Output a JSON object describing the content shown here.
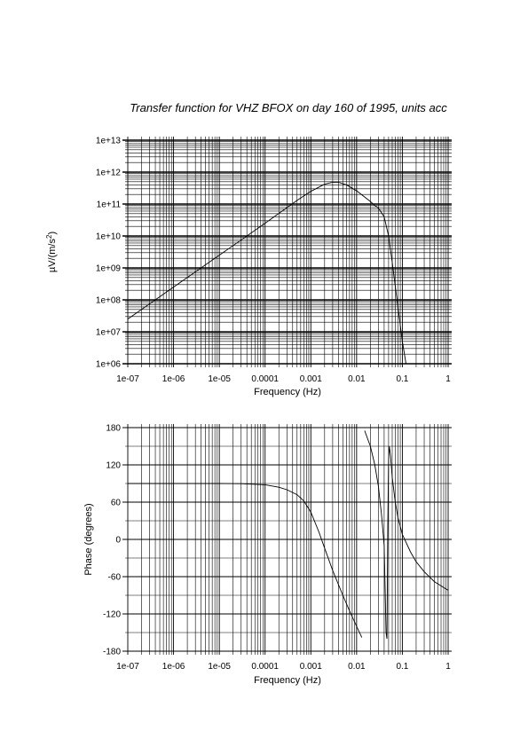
{
  "page": {
    "title": "Transfer function for VHZ BFOX on day 160 of 1995, units acc"
  },
  "chart_data": [
    {
      "type": "line",
      "xscale": "log",
      "yscale": "log",
      "xlim": [
        1e-07,
        1
      ],
      "ylim": [
        1000000.0,
        10000000000000.0
      ],
      "grid": true,
      "xlabel": "Frequency (Hz)",
      "ylabel_prefix": "µV/(m/s",
      "ylabel_sup": "2",
      "ylabel_suffix": ")",
      "xticks": [
        "1e-07",
        "1e-06",
        "1e-05",
        "0.0001",
        "0.001",
        "0.01",
        "0.1",
        "1"
      ],
      "yticks": [
        "1e+06",
        "1e+07",
        "1e+08",
        "1e+09",
        "1e+10",
        "1e+11",
        "1e+12",
        "1e+13"
      ],
      "series": [
        {
          "x": [
            1e-07,
            1e-06,
            1e-05,
            0.0001,
            0.0005,
            0.001,
            0.002,
            0.003,
            0.004,
            0.006,
            0.01,
            0.02,
            0.025,
            0.03,
            0.04,
            0.05,
            0.06,
            0.08,
            0.1,
            0.12
          ],
          "y": [
            25000000.0,
            250000000.0,
            2500000000.0,
            25000000000.0,
            130000000000.0,
            250000000000.0,
            420000000000.0,
            480000000000.0,
            480000000000.0,
            400000000000.0,
            260000000000.0,
            120000000000.0,
            90000000000.0,
            75000000000.0,
            40000000000.0,
            10000000000.0,
            1500000000.0,
            60000000.0,
            5000000.0,
            1000000.0
          ]
        }
      ]
    },
    {
      "type": "line",
      "xscale": "log",
      "xlim": [
        1e-07,
        1
      ],
      "ylim": [
        -180,
        180
      ],
      "grid": true,
      "xlabel": "Frequency (Hz)",
      "ylabel": "Phase (degrees)",
      "xticks": [
        "1e-07",
        "1e-06",
        "1e-05",
        "0.0001",
        "0.001",
        "0.01",
        "0.1",
        "1"
      ],
      "yticks": [
        "180",
        "120",
        "60",
        "0",
        "-60",
        "-120",
        "-180"
      ],
      "segments": [
        {
          "x": [
            1e-07,
            1e-06,
            1e-05,
            3e-05,
            0.0001,
            0.0002,
            0.0003,
            0.0005,
            0.0007,
            0.001,
            0.0015,
            0.002,
            0.003,
            0.005,
            0.007,
            0.01,
            0.013
          ],
          "y": [
            90,
            90,
            90,
            89.8,
            88,
            84,
            80,
            72,
            62,
            44,
            12,
            -14,
            -50,
            -90,
            -115,
            -140,
            -158
          ]
        },
        {
          "x": [
            0.015,
            0.02,
            0.025,
            0.03,
            0.035,
            0.04
          ],
          "y": [
            175,
            150,
            120,
            85,
            40,
            -10
          ]
        },
        {
          "x": [
            0.04,
            0.042,
            0.044,
            0.046,
            0.048,
            0.05,
            0.052,
            0.055,
            0.06,
            0.07,
            0.08,
            0.1,
            0.15,
            0.2,
            0.3,
            0.5,
            1
          ],
          "y": [
            -10,
            -80,
            -150,
            -160,
            20,
            130,
            150,
            135,
            100,
            60,
            35,
            8,
            -20,
            -36,
            -52,
            -68,
            -82
          ]
        }
      ]
    }
  ]
}
